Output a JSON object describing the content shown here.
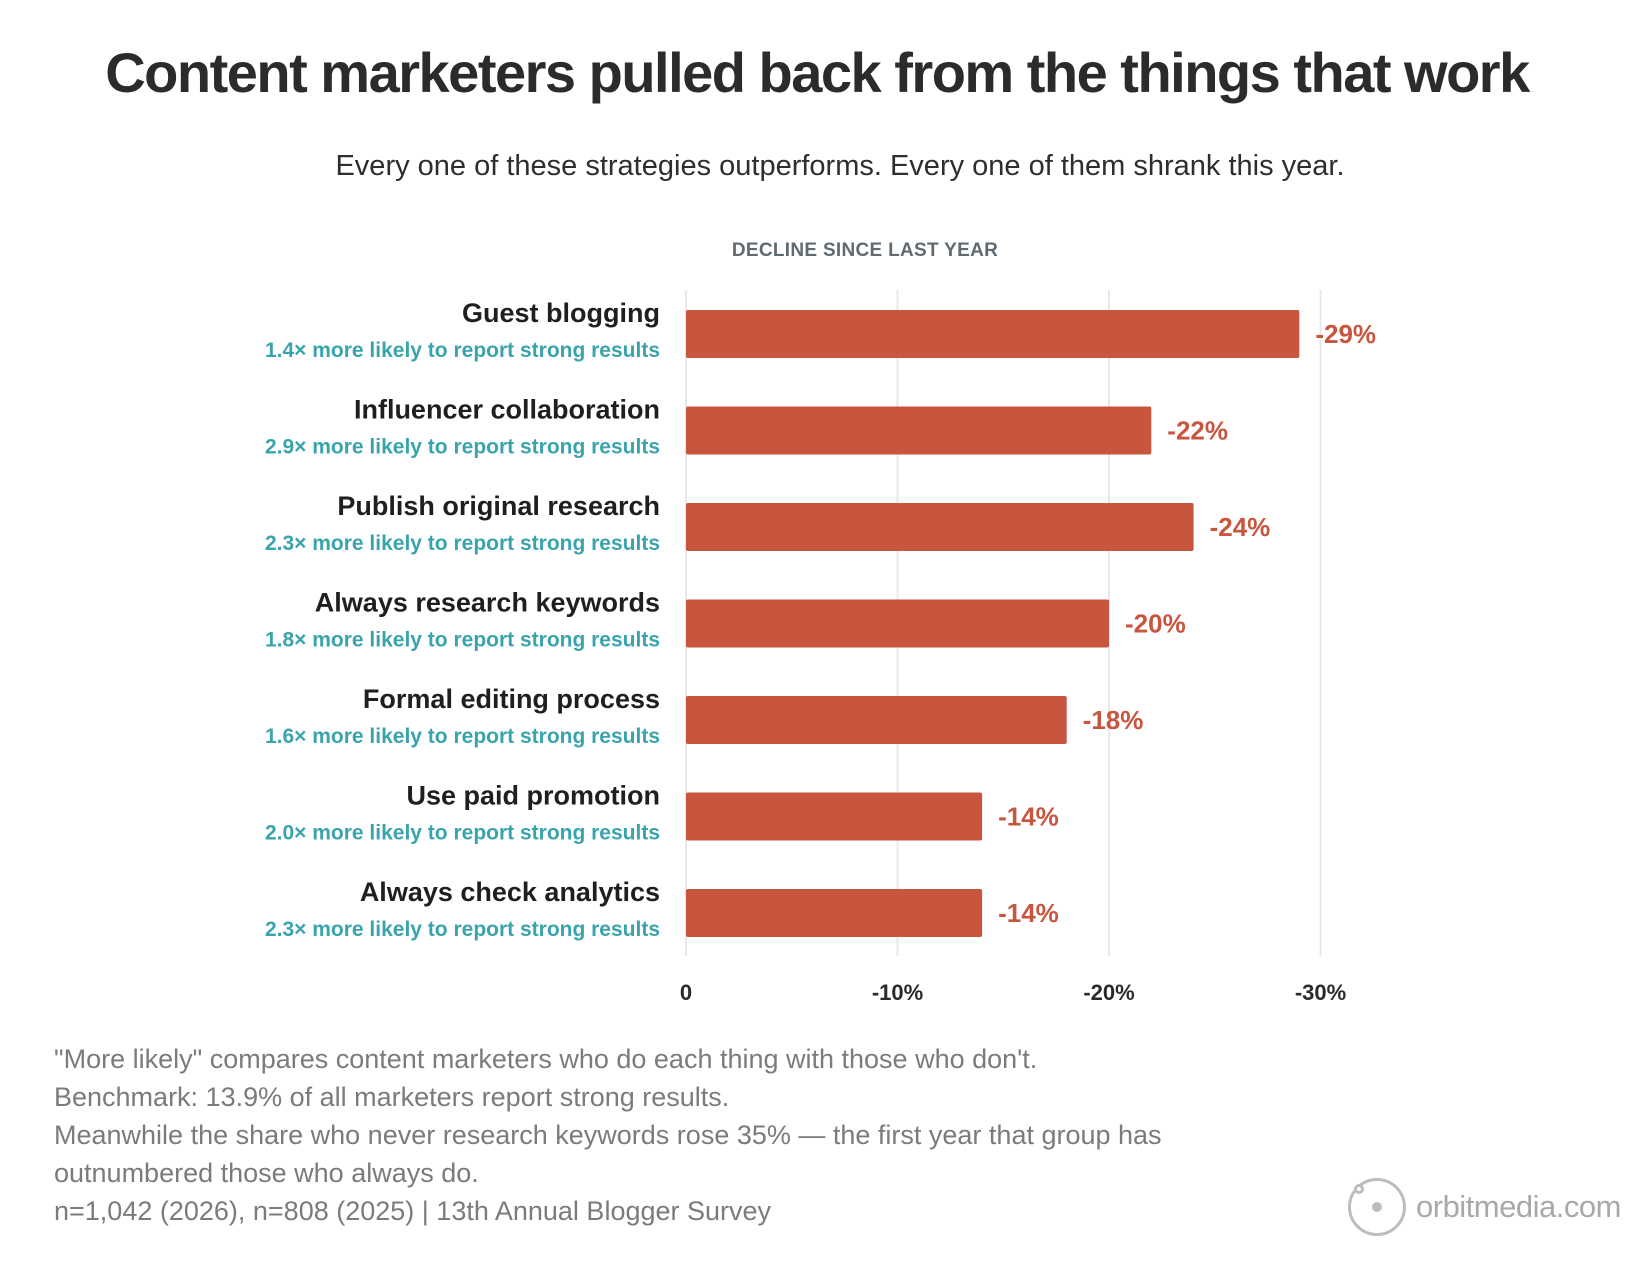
{
  "header": {
    "title": "Content marketers pulled back from the things that work",
    "subtitle": "Every one of these strategies outperforms. Every one of them shrank this year."
  },
  "chart_data": {
    "type": "bar",
    "orientation": "horizontal",
    "axis_heading": "DECLINE SINCE LAST YEAR",
    "categories": [
      "Guest blogging",
      "Influencer collaboration",
      "Publish original research",
      "Always research keywords",
      "Formal editing process",
      "Use paid promotion",
      "Always check analytics"
    ],
    "category_notes": [
      "1.4× more likely to report strong results",
      "2.9× more likely to report strong results",
      "2.3× more likely to report strong results",
      "1.8× more likely to report strong results",
      "1.6× more likely to report strong results",
      "2.0× more likely to report strong results",
      "2.3× more likely to report strong results"
    ],
    "values": [
      -29,
      -22,
      -24,
      -20,
      -18,
      -14,
      -14
    ],
    "value_labels": [
      "-29%",
      "-22%",
      "-24%",
      "-20%",
      "-18%",
      "-14%",
      "-14%"
    ],
    "xlim": [
      0,
      -30
    ],
    "ticks": [
      0,
      -10,
      -20,
      -30
    ],
    "tick_labels": [
      "0",
      "-10%",
      "-20%",
      "-30%"
    ],
    "grid": true,
    "colors": {
      "bar": "#c8553d",
      "value_label": "#c8553d",
      "category_note": "#3aa4ad",
      "grid": "#e8e8e8"
    }
  },
  "notes": [
    "\"More likely\" compares content marketers who do each thing with those who don't.",
    "Benchmark: 13.9% of all marketers report strong results.",
    "Meanwhile the share who never research keywords rose 35% — the first year that group has outnumbered those who always do.",
    "n=1,042 (2026), n=808 (2025) | 13th Annual Blogger Survey"
  ],
  "brand": {
    "text": "orbitmedia.com",
    "icon": "orbit-logo-icon"
  }
}
